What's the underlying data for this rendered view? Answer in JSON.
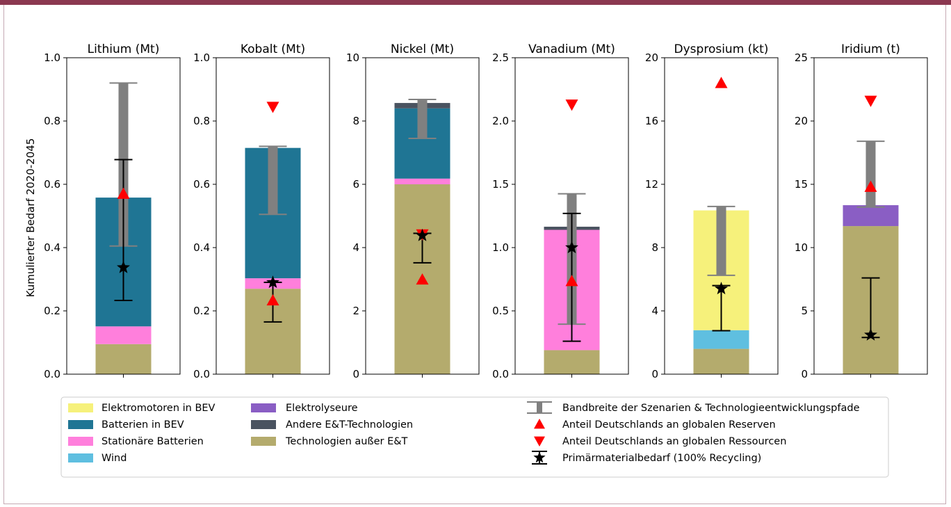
{
  "chart_data": {
    "type": "bar",
    "ylabel": "Kumulierter Bedarf 2020-2045",
    "colors": {
      "elektromotoren_bev": "#f6f17b",
      "batterien_bev": "#1f7594",
      "stationaere_batterien": "#ff7fdc",
      "wind": "#5fbfe0",
      "elektrolyseure": "#8a5ec4",
      "andere_et": "#4a5360",
      "ausser_et": "#b4ab6d",
      "range_bar": "#808080",
      "marker": "#ff0000",
      "black": "#000000"
    },
    "panels": [
      {
        "title": "Lithium (Mt)",
        "ylim": [
          0,
          1.0
        ],
        "yticks": [
          "0.0",
          "0.2",
          "0.4",
          "0.6",
          "0.8",
          "1.0"
        ],
        "tickvals": [
          0,
          0.2,
          0.4,
          0.6,
          0.8,
          1.0
        ],
        "stack": [
          {
            "key": "ausser_et",
            "value": 0.095
          },
          {
            "key": "stationaere_batterien",
            "value": 0.056
          },
          {
            "key": "batterien_bev",
            "value": 0.407
          }
        ],
        "range": [
          0.405,
          0.92
        ],
        "reserves": 0.57,
        "resources": null,
        "primary": 0.337,
        "primary_err": [
          0.233,
          0.678
        ]
      },
      {
        "title": "Kobalt (Mt)",
        "ylim": [
          0,
          1.0
        ],
        "yticks": [
          "0.0",
          "0.2",
          "0.4",
          "0.6",
          "0.8",
          "1.0"
        ],
        "tickvals": [
          0,
          0.2,
          0.4,
          0.6,
          0.8,
          1.0
        ],
        "stack": [
          {
            "key": "ausser_et",
            "value": 0.27
          },
          {
            "key": "stationaere_batterien",
            "value": 0.033
          },
          {
            "key": "batterien_bev",
            "value": 0.412
          }
        ],
        "range": [
          0.505,
          0.72
        ],
        "reserves": 0.233,
        "resources": 0.845,
        "primary": 0.29,
        "primary_err": [
          0.165,
          0.29
        ]
      },
      {
        "title": "Nickel (Mt)",
        "ylim": [
          0,
          10
        ],
        "yticks": [
          "0",
          "2",
          "4",
          "6",
          "8",
          "10"
        ],
        "tickvals": [
          0,
          2,
          4,
          6,
          8,
          10
        ],
        "stack": [
          {
            "key": "ausser_et",
            "value": 6.0
          },
          {
            "key": "stationaere_batterien",
            "value": 0.18
          },
          {
            "key": "batterien_bev",
            "value": 2.22
          },
          {
            "key": "andere_et",
            "value": 0.17
          }
        ],
        "range": [
          7.45,
          8.68
        ],
        "reserves": 2.99,
        "resources": 4.42,
        "primary": 4.38,
        "primary_err": [
          3.52,
          4.45
        ]
      },
      {
        "title": "Vanadium (Mt)",
        "ylim": [
          0,
          2.5
        ],
        "yticks": [
          "0.0",
          "0.5",
          "1.0",
          "1.5",
          "2.0",
          "2.5"
        ],
        "tickvals": [
          0,
          0.5,
          1.0,
          1.5,
          2.0,
          2.5
        ],
        "stack": [
          {
            "key": "ausser_et",
            "value": 0.19
          },
          {
            "key": "stationaere_batterien",
            "value": 0.95
          },
          {
            "key": "andere_et",
            "value": 0.025
          }
        ],
        "range": [
          0.395,
          1.425
        ],
        "reserves": 0.735,
        "resources": 2.13,
        "primary": 1.0,
        "primary_err": [
          0.26,
          1.27
        ]
      },
      {
        "title": "Dysprosium (kt)",
        "ylim": [
          0,
          20
        ],
        "yticks": [
          "0",
          "4",
          "8",
          "12",
          "16",
          "20"
        ],
        "tickvals": [
          0,
          4,
          8,
          12,
          16,
          20
        ],
        "stack": [
          {
            "key": "ausser_et",
            "value": 1.6
          },
          {
            "key": "wind",
            "value": 1.18
          },
          {
            "key": "elektromotoren_bev",
            "value": 7.57
          }
        ],
        "range": [
          6.25,
          10.6
        ],
        "reserves": 18.4,
        "resources": null,
        "primary": 5.4,
        "primary_err": [
          2.75,
          5.6
        ]
      },
      {
        "title": "Iridium (t)",
        "ylim": [
          0,
          25
        ],
        "yticks": [
          "0",
          "5",
          "10",
          "15",
          "20",
          "25"
        ],
        "tickvals": [
          0,
          5,
          10,
          15,
          20,
          25
        ],
        "stack": [
          {
            "key": "ausser_et",
            "value": 11.7
          },
          {
            "key": "elektrolyseure",
            "value": 1.65
          }
        ],
        "range": [
          13.2,
          18.4
        ],
        "reserves": 14.8,
        "resources": 21.6,
        "primary": 3.1,
        "primary_err": [
          2.9,
          7.6
        ]
      }
    ],
    "legend": {
      "placement": "bottom",
      "col1": [
        "Elektromotoren in BEV",
        "Batterien in BEV",
        "Stationäre Batterien",
        "Wind"
      ],
      "col2": [
        "Elektrolyseure",
        "Andere E&T-Technologien",
        "Technologien außer E&T"
      ],
      "col3": [
        "Bandbreite der Szenarien & Technologieentwicklungspfade",
        "Anteil Deutschlands an globalen Reserven",
        "Anteil Deutschlands an globalen Ressourcen",
        "Primärmaterialbedarf (100% Recycling)"
      ]
    }
  }
}
